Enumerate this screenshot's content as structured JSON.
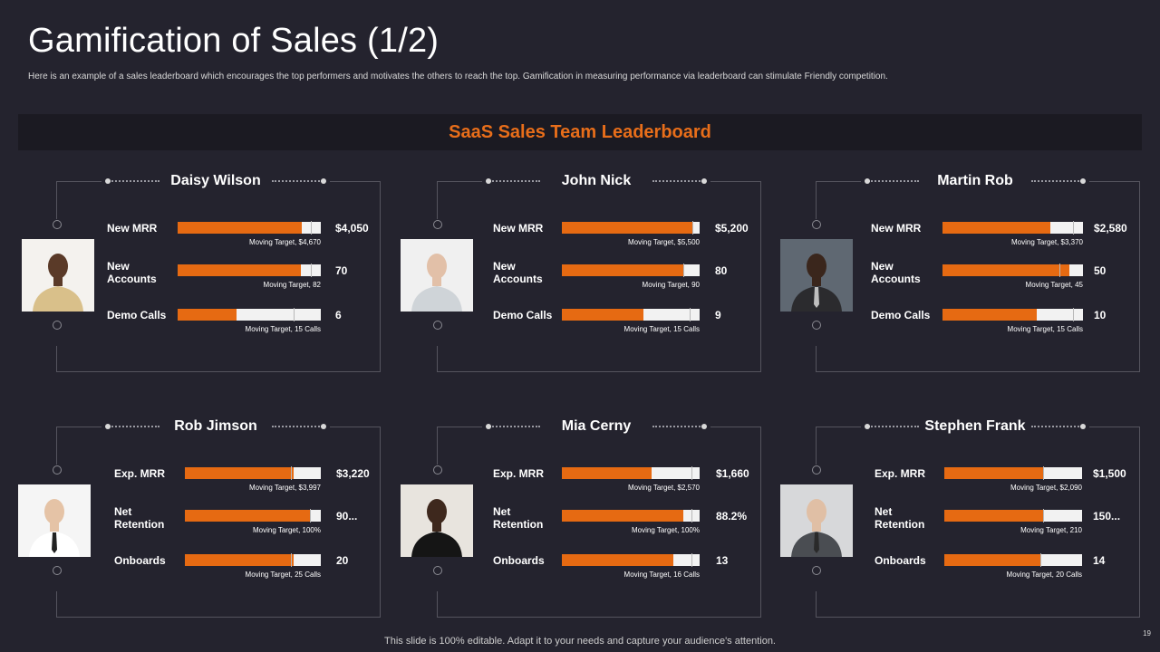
{
  "title": "Gamification of Sales (1/2)",
  "subtitle": "Here is an example of a sales leaderboard which encourages the top performers and motivates the others to reach the top. Gamification in measuring performance via leaderboard can stimulate Friendly competition.",
  "banner": "SaaS Sales Team Leaderboard",
  "colors": {
    "accent": "#e66a12",
    "background": "#24232e",
    "banner_bg": "#1b1a22",
    "bar_track": "#f2f2f2"
  },
  "cards": [
    {
      "name": "Daisy Wilson",
      "metrics": [
        {
          "label": "New MRR",
          "value": "$4,050",
          "target": "Moving Target, $4,670",
          "fill": 0.87,
          "mark": 0.93
        },
        {
          "label": "New Accounts",
          "value": "70",
          "target": "Moving Target, 82",
          "fill": 0.86,
          "mark": 0.93
        },
        {
          "label": "Demo Calls",
          "value": "6",
          "target": "Moving Target, 15 Calls",
          "fill": 0.41,
          "mark": 0.81
        }
      ]
    },
    {
      "name": "John Nick",
      "metrics": [
        {
          "label": "New MRR",
          "value": "$5,200",
          "target": "Moving Target, $5,500",
          "fill": 0.95,
          "mark": 0.95
        },
        {
          "label": "New Accounts",
          "value": "80",
          "target": "Moving Target, 90",
          "fill": 0.88,
          "mark": 0.88
        },
        {
          "label": "Demo Calls",
          "value": "9",
          "target": "Moving Target, 15 Calls",
          "fill": 0.59,
          "mark": 0.93
        }
      ]
    },
    {
      "name": "Martin Rob",
      "metrics": [
        {
          "label": "New MRR",
          "value": "$2,580",
          "target": "Moving Target, $3,370",
          "fill": 0.77,
          "mark": 0.93
        },
        {
          "label": "New Accounts",
          "value": "50",
          "target": "Moving Target, 45",
          "fill": 0.9,
          "mark": 0.83
        },
        {
          "label": "Demo Calls",
          "value": "10",
          "target": "Moving Target, 15 Calls",
          "fill": 0.67,
          "mark": 0.93
        }
      ]
    },
    {
      "name": "Rob Jimson",
      "metrics": [
        {
          "label": "Exp. MRR",
          "value": "$3,220",
          "target": "Moving Target, $3,997",
          "fill": 0.8,
          "mark": 0.78
        },
        {
          "label": "Net Retention",
          "value": "90...",
          "target": "Moving Target, 100%",
          "fill": 0.92,
          "mark": 0.92
        },
        {
          "label": "Onboards",
          "value": "20",
          "target": "Moving Target, 25 Calls",
          "fill": 0.8,
          "mark": 0.78
        }
      ]
    },
    {
      "name": "Mia Cerny",
      "metrics": [
        {
          "label": "Exp. MRR",
          "value": "$1,660",
          "target": "Moving Target, $2,570",
          "fill": 0.65,
          "mark": 0.94
        },
        {
          "label": "Net Retention",
          "value": "88.2%",
          "target": "Moving Target, 100%",
          "fill": 0.88,
          "mark": 0.94
        },
        {
          "label": "Onboards",
          "value": "13",
          "target": "Moving Target, 16 Calls",
          "fill": 0.81,
          "mark": 0.94
        }
      ]
    },
    {
      "name": "Stephen Frank",
      "metrics": [
        {
          "label": "Exp. MRR",
          "value": "$1,500",
          "target": "Moving Target, $2,090",
          "fill": 0.72,
          "mark": 0.72
        },
        {
          "label": "Net Retention",
          "value": "150...",
          "target": "Moving Target, 210",
          "fill": 0.72,
          "mark": 0.72
        },
        {
          "label": "Onboards",
          "value": "14",
          "target": "Moving Target, 20 Calls",
          "fill": 0.7,
          "mark": 0.7
        }
      ]
    }
  ],
  "footer": "This slide is 100% editable. Adapt it to your needs and capture your audience's attention.",
  "page_number": "19"
}
